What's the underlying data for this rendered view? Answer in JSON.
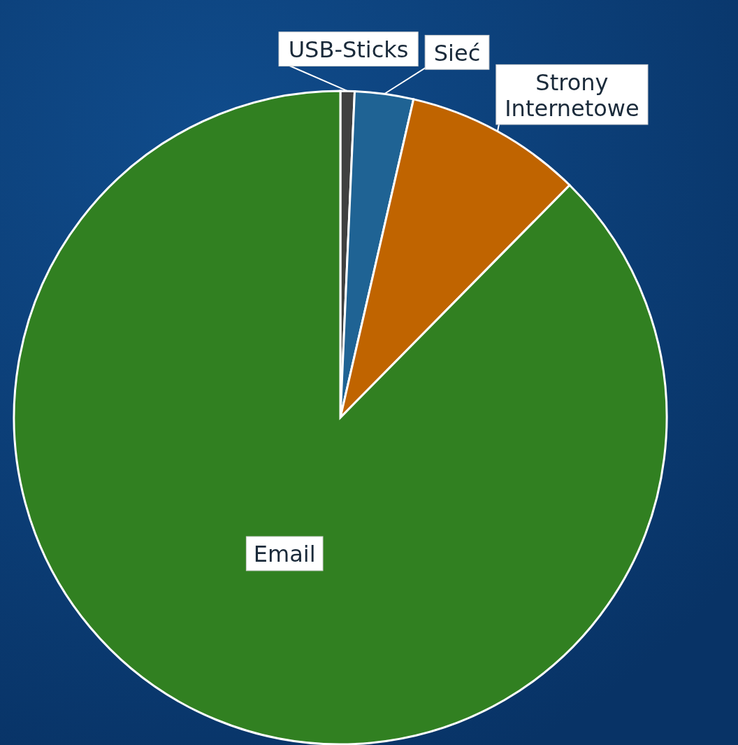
{
  "chart_data": {
    "type": "pie",
    "categories": [
      "USB-Sticks",
      "Sieć",
      "Strony Internetowe",
      "Email"
    ],
    "values": [
      0.7,
      2.9,
      8.8,
      87.6
    ],
    "colors": [
      "#404040",
      "#1f6394",
      "#c06400",
      "#318021"
    ],
    "data_labels": false,
    "legend": false
  }
}
